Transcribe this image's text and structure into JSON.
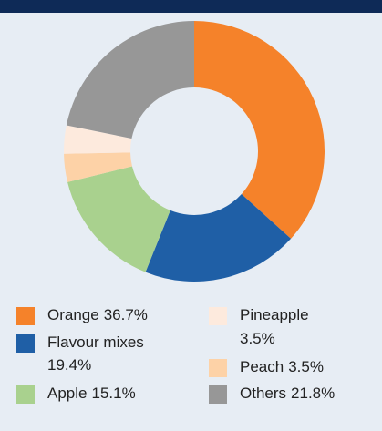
{
  "chart_data": {
    "type": "donut",
    "categories": [
      "Orange",
      "Flavour mixes",
      "Apple",
      "Peach",
      "Pineapple",
      "Others"
    ],
    "values": [
      36.7,
      19.4,
      15.1,
      3.5,
      3.5,
      21.8
    ],
    "value_labels": [
      "36.7%",
      "19.4%",
      "15.1%",
      "3.5%",
      "3.5%",
      "21.8%"
    ],
    "colors": [
      "#f5822a",
      "#1f5fa6",
      "#a9d18e",
      "#fdd2a7",
      "#fdeadd",
      "#979797"
    ]
  }
}
